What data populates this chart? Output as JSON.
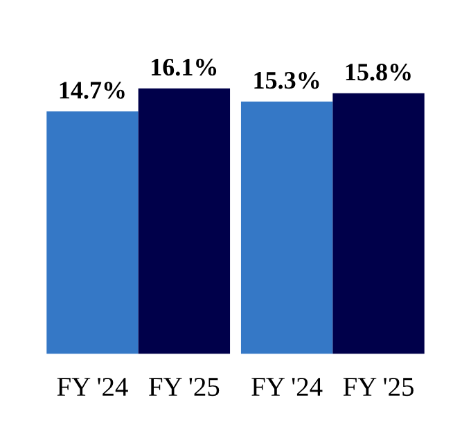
{
  "chart_data": {
    "type": "bar",
    "categories": [
      "FY '24",
      "FY '25",
      "FY '24",
      "FY '25"
    ],
    "values": [
      14.7,
      16.1,
      15.3,
      15.8
    ],
    "colors": [
      "#3578c6",
      "#00004a",
      "#3578c6",
      "#00004a"
    ],
    "value_labels": [
      "14.7%",
      "16.1%",
      "15.3%",
      "15.8%"
    ],
    "tick_labels": "x",
    "grid": false,
    "legend": false
  }
}
